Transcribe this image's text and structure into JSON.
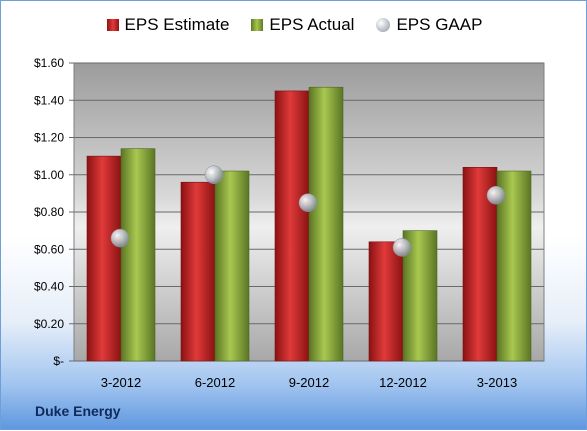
{
  "brand": "Duke Energy",
  "chart_data": {
    "type": "bar",
    "categories": [
      "3-2012",
      "6-2012",
      "9-2012",
      "12-2012",
      "3-2013"
    ],
    "series": [
      {
        "name": "EPS Estimate",
        "kind": "bar",
        "color": "#c8262a",
        "values": [
          1.1,
          0.96,
          1.45,
          0.64,
          1.04
        ]
      },
      {
        "name": "EPS Actual",
        "kind": "bar",
        "color": "#8fb241",
        "values": [
          1.14,
          1.02,
          1.47,
          0.7,
          1.02
        ]
      },
      {
        "name": "EPS GAAP",
        "kind": "marker",
        "color": "#b9bec6",
        "values": [
          0.66,
          1.0,
          0.85,
          0.61,
          0.89
        ]
      }
    ],
    "ylim": [
      0,
      1.6
    ],
    "y_ticks": [
      0,
      0.2,
      0.4,
      0.6,
      0.8,
      1.0,
      1.2,
      1.4,
      1.6
    ],
    "y_tick_labels": [
      "$-",
      "$0.20",
      "$0.40",
      "$0.60",
      "$0.80",
      "$1.00",
      "$1.20",
      "$1.40",
      "$1.60"
    ],
    "grid": true,
    "legend_position": "top"
  }
}
